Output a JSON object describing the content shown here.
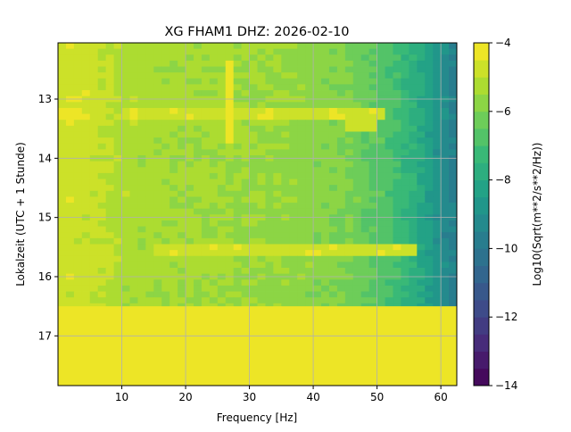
{
  "chart_data": {
    "type": "heatmap",
    "title": "XG FHAM1  DHZ: 2026-02-10",
    "xlabel": "Frequency [Hz]",
    "ylabel": "Lokalzeit (UTC + 1 Stunde)",
    "xlim": [
      0,
      62.5
    ],
    "ylim": [
      17.84,
      12.05
    ],
    "xticks": [
      10,
      20,
      30,
      40,
      50,
      60
    ],
    "yticks": [
      13,
      14,
      15,
      16,
      17
    ],
    "grid": true,
    "colorbar": {
      "label": "Log10(Sqrt(m**2/s**2/Hz))",
      "range": [
        -14,
        -4
      ],
      "ticks": [
        -4,
        -6,
        -8,
        -10,
        -12,
        -14
      ],
      "tick_labels": [
        "−4",
        "−6",
        "−8",
        "−10",
        "−12",
        "−14"
      ],
      "level_step": 0.5,
      "colormap": "viridis"
    },
    "data_end_time": 16.5,
    "no_data_value": -4,
    "freq_step_hz": 2.5,
    "freq_profile_log10": [
      -4.7,
      -4.7,
      -4.8,
      -5.0,
      -5.2,
      -5.3,
      -5.3,
      -5.4,
      -5.4,
      -5.4,
      -5.4,
      -5.5,
      -5.5,
      -5.6,
      -5.6,
      -5.7,
      -5.8,
      -5.9,
      -6.0,
      -6.3,
      -6.6,
      -7.0,
      -7.5,
      -8.2,
      -9.0,
      -9.8
    ],
    "time_step_h": 0.25,
    "time_start_h": 12.05,
    "row_offsets": [
      0.1,
      0.05,
      0,
      0.05,
      0.1,
      0.15,
      0.05,
      0,
      -0.05,
      0,
      0.05,
      0,
      -0.05,
      -0.1,
      0,
      0.1,
      0,
      -0.1
    ],
    "features": [
      {
        "type": "spectral_line",
        "freq_hz": 27,
        "time_h": [
          12.3,
          13.7
        ],
        "value": -4.2
      },
      {
        "type": "broadband_burst",
        "time_h": 13.25,
        "freq_hz": [
          10,
          50
        ],
        "value": -4.6
      },
      {
        "type": "broadband_burst",
        "time_h": 15.55,
        "freq_hz": [
          15,
          55
        ],
        "value": -4.6
      },
      {
        "type": "patch",
        "freq_hz": [
          45,
          49
        ],
        "time_h": [
          13.3,
          13.45
        ],
        "value": -4.6
      }
    ]
  }
}
